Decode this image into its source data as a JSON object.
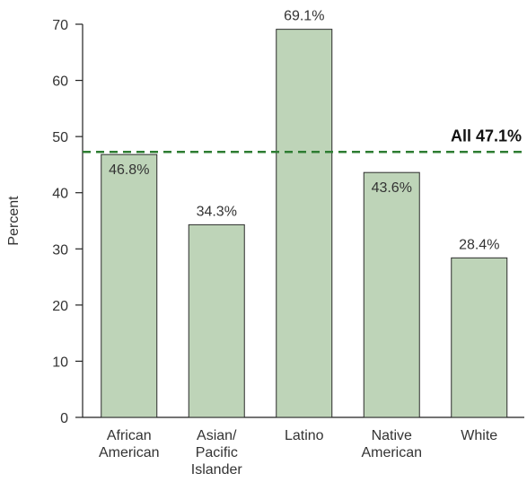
{
  "chart_data": {
    "type": "bar",
    "categories": [
      [
        "African",
        "American"
      ],
      [
        "Asian/",
        "Pacific",
        "Islander"
      ],
      [
        "Latino"
      ],
      [
        "Native",
        "American"
      ],
      [
        "White"
      ]
    ],
    "values": [
      46.8,
      34.3,
      69.1,
      43.6,
      28.4
    ],
    "value_labels": [
      "46.8%",
      "34.3%",
      "69.1%",
      "43.6%",
      "28.4%"
    ],
    "value_label_placement": [
      "inside",
      "above",
      "above",
      "inside",
      "above"
    ],
    "title": "",
    "xlabel": "",
    "ylabel": "Percent",
    "ylim": [
      0,
      70
    ],
    "yticks": [
      0,
      10,
      20,
      30,
      40,
      50,
      60,
      70
    ],
    "grid": false,
    "reference_line": {
      "value": 47.1,
      "label": "All 47.1%",
      "style": "dashed"
    },
    "colors": {
      "bar_fill": "#bed4b8",
      "bar_stroke": "#2b2b2b",
      "reference_line": "#2e7d32",
      "axis": "#222222"
    }
  }
}
